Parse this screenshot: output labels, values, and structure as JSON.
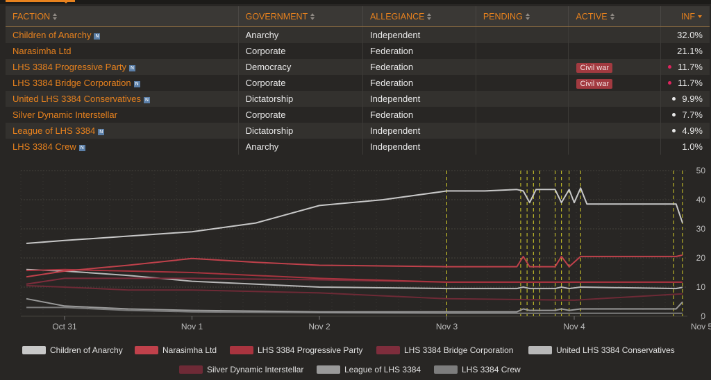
{
  "table": {
    "headers": {
      "faction": "FACTION",
      "government": "GOVERNMENT",
      "allegiance": "ALLEGIANCE",
      "pending": "PENDING",
      "active": "ACTIVE",
      "inf": "INF"
    },
    "badge_label": "N",
    "rows": [
      {
        "faction": "Children of Anarchy",
        "badge": true,
        "government": "Anarchy",
        "allegiance": "Independent",
        "active": "",
        "dot": "",
        "inf": "32.0%"
      },
      {
        "faction": "Narasimha Ltd",
        "badge": false,
        "government": "Corporate",
        "allegiance": "Federation",
        "active": "",
        "dot": "",
        "inf": "21.1%"
      },
      {
        "faction": "LHS 3384 Progressive Party",
        "badge": true,
        "government": "Democracy",
        "allegiance": "Federation",
        "active": "Civil war",
        "dot": "#e0245e",
        "inf": "11.7%"
      },
      {
        "faction": "LHS 3384 Bridge Corporation",
        "badge": true,
        "government": "Corporate",
        "allegiance": "Federation",
        "active": "Civil war",
        "dot": "#e0245e",
        "inf": "11.7%"
      },
      {
        "faction": "United LHS 3384 Conservatives",
        "badge": true,
        "government": "Dictatorship",
        "allegiance": "Independent",
        "active": "",
        "dot": "#e8e8e8",
        "inf": "9.9%"
      },
      {
        "faction": "Silver Dynamic Interstellar",
        "badge": false,
        "government": "Corporate",
        "allegiance": "Federation",
        "active": "",
        "dot": "#e8e8e8",
        "inf": "7.7%"
      },
      {
        "faction": "League of LHS 3384",
        "badge": true,
        "government": "Dictatorship",
        "allegiance": "Independent",
        "active": "",
        "dot": "#e8e8e8",
        "inf": "4.9%"
      },
      {
        "faction": "LHS 3384 Crew",
        "badge": true,
        "government": "Anarchy",
        "allegiance": "Independent",
        "active": "",
        "dot": "",
        "inf": "1.0%"
      }
    ]
  },
  "chart_data": {
    "type": "line",
    "x_ticks": [
      "Oct 31",
      "Nov 1",
      "Nov 2",
      "Nov 3",
      "Nov 4",
      "Nov 5"
    ],
    "xlim": [
      0,
      5
    ],
    "ylim": [
      0,
      50
    ],
    "y_ticks": [
      0,
      10,
      20,
      30,
      40,
      50
    ],
    "grid": true,
    "legend": "bottom",
    "markers": [
      3.0,
      3.58,
      3.63,
      3.68,
      3.73,
      3.85,
      3.9,
      3.96,
      4.05,
      4.78,
      4.85
    ],
    "series": [
      {
        "name": "Children of Anarchy",
        "color": "#c8c8c8",
        "x": [
          -0.3,
          0.0,
          0.5,
          1.0,
          1.5,
          2.0,
          2.5,
          3.0,
          3.3,
          3.55,
          3.6,
          3.65,
          3.7,
          3.75,
          3.85,
          3.9,
          3.96,
          4.0,
          4.05,
          4.1,
          4.8,
          4.85
        ],
        "y": [
          25,
          26,
          27.5,
          29,
          32,
          38,
          40,
          43,
          43,
          43.5,
          43,
          39,
          43.5,
          43.5,
          43.5,
          39,
          43.5,
          39,
          44,
          38.5,
          38.5,
          32
        ]
      },
      {
        "name": "Narasimha Ltd",
        "color": "#c0414b",
        "x": [
          -0.3,
          0.0,
          0.5,
          1.0,
          1.5,
          2.0,
          3.0,
          3.55,
          3.6,
          3.65,
          3.7,
          3.85,
          3.9,
          3.96,
          4.05,
          4.8,
          4.85
        ],
        "y": [
          13.5,
          15.5,
          17.5,
          19.8,
          18.5,
          17.5,
          17,
          17,
          20.5,
          17,
          17,
          17,
          20.5,
          17,
          20.5,
          20.5,
          21
        ]
      },
      {
        "name": "LHS 3384 Progressive Party",
        "color": "#a9343f",
        "x": [
          -0.3,
          0.0,
          0.5,
          1.0,
          2.0,
          3.0,
          4.0,
          4.85
        ],
        "y": [
          15.7,
          16,
          15.5,
          15,
          13,
          11.7,
          11.7,
          11.7
        ]
      },
      {
        "name": "LHS 3384 Bridge Corporation",
        "color": "#7e2d3c",
        "x": [
          -0.3,
          0.0,
          0.5,
          1.0,
          2.0,
          3.0,
          4.0,
          4.85
        ],
        "y": [
          11,
          13,
          13,
          13,
          12.5,
          11.7,
          11.7,
          11.7
        ]
      },
      {
        "name": "United LHS 3384 Conservatives",
        "color": "#b8b8b8",
        "x": [
          -0.3,
          0.0,
          0.5,
          1.0,
          1.5,
          2.0,
          3.0,
          3.55,
          3.6,
          3.65,
          3.85,
          3.9,
          3.96,
          4.05,
          4.8,
          4.85
        ],
        "y": [
          16,
          15.5,
          14,
          12,
          11,
          10,
          9.5,
          9.5,
          10,
          9.5,
          9.5,
          10,
          9.5,
          10,
          9.5,
          9.9
        ]
      },
      {
        "name": "Silver Dynamic Interstellar",
        "color": "#6e2a36",
        "x": [
          -0.3,
          0.0,
          0.5,
          1.0,
          2.0,
          3.0,
          4.0,
          4.85
        ],
        "y": [
          10.5,
          10,
          9,
          9,
          8,
          6,
          5.5,
          7.7
        ]
      },
      {
        "name": "League of LHS 3384",
        "color": "#9a9a9a",
        "x": [
          -0.3,
          0.0,
          0.5,
          1.0,
          2.0,
          3.0,
          3.55,
          3.6,
          3.65,
          3.85,
          3.9,
          3.96,
          4.05,
          4.8,
          4.85
        ],
        "y": [
          6,
          3.5,
          2.5,
          2,
          1.5,
          1.5,
          1.5,
          2.5,
          2,
          2,
          2.5,
          2,
          2.5,
          2.5,
          4.9
        ]
      },
      {
        "name": "LHS 3384 Crew",
        "color": "#7d7d7d",
        "x": [
          -0.3,
          0.0,
          0.5,
          1.0,
          2.0,
          3.0,
          4.0,
          4.85
        ],
        "y": [
          3,
          3,
          2,
          1.5,
          1.2,
          1,
          1,
          1
        ]
      }
    ]
  }
}
